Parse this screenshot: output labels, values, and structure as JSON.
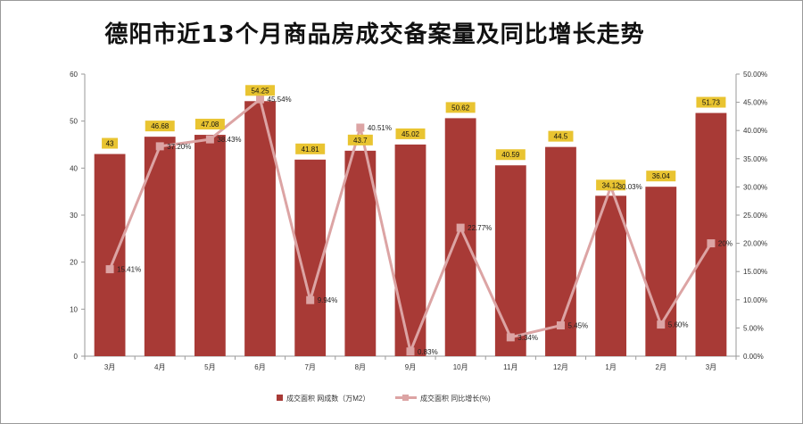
{
  "title": "德阳市近13个月商品房成交备案量及同比增长走势",
  "chart_data": {
    "type": "bar",
    "categories": [
      "3月",
      "4月",
      "5月",
      "6月",
      "7月",
      "8月",
      "9月",
      "10月",
      "11月",
      "12月",
      "1月",
      "2月",
      "3月"
    ],
    "series": [
      {
        "name": "成交面积 网成数（万M2）",
        "kind": "bar",
        "axis": "left",
        "values": [
          43,
          46.68,
          47.08,
          54.25,
          41.81,
          43.7,
          45.02,
          50.62,
          40.59,
          44.5,
          34.12,
          36.04,
          51.73
        ],
        "labels": [
          "43",
          "46.68",
          "47.08",
          "54.25",
          "41.81",
          "43.7",
          "45.02",
          "50.62",
          "40.59",
          "44.5",
          "34.12",
          "36.04",
          "51.73"
        ]
      },
      {
        "name": "成交面积 同比增长(%)",
        "kind": "line",
        "axis": "right",
        "values": [
          15.41,
          37.2,
          38.43,
          45.54,
          9.94,
          40.51,
          0.83,
          22.77,
          3.34,
          5.45,
          30.03,
          5.6,
          20
        ],
        "labels": [
          "15.41%",
          "37.20%",
          "38.43%",
          "45.54%",
          "9.94%",
          "40.51%",
          "0.83%",
          "22.77%",
          "3.34%",
          "5.45%",
          "30.03%",
          "5.60%",
          "20%"
        ]
      }
    ],
    "y_left": {
      "ylim": [
        0,
        60
      ],
      "ticks": [
        "0",
        "10",
        "20",
        "30",
        "40",
        "50",
        "60"
      ]
    },
    "y_right": {
      "ylim": [
        0,
        50
      ],
      "ticks": [
        "0.00%",
        "5.00%",
        "10.00%",
        "15.00%",
        "20.00%",
        "25.00%",
        "30.00%",
        "35.00%",
        "40.00%",
        "45.00%",
        "50.00%"
      ]
    },
    "legend_position": "bottom",
    "colors": {
      "bar": "#a83a36",
      "line": "#dca4a4",
      "label_box": "#e9c431"
    },
    "grid": false
  }
}
